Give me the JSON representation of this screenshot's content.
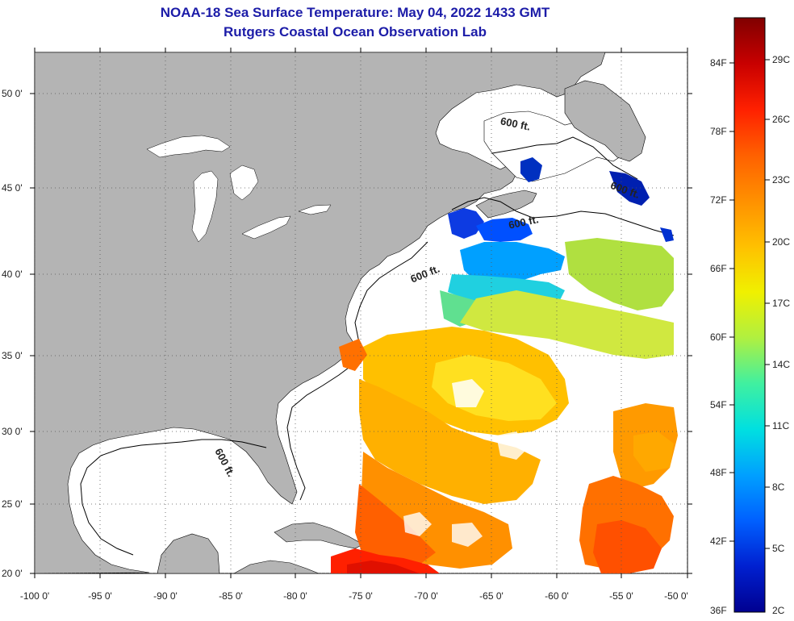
{
  "title": {
    "line1": "NOAA-18 Sea Surface Temperature:  May 04, 2022 1433 GMT",
    "line2": "Rutgers Coastal Ocean Observation Lab"
  },
  "axes": {
    "x_ticks": [
      "-100 0'",
      "-95 0'",
      "-90 0'",
      "-85 0'",
      "-80 0'",
      "-75 0'",
      "-70 0'",
      "-65 0'",
      "-60 0'",
      "-55 0'",
      "-50 0'"
    ],
    "y_ticks": [
      "50 0'",
      "45 0'",
      "40 0'",
      "35 0'",
      "30 0'",
      "25 0'",
      "20 0'"
    ]
  },
  "isobath_labels": [
    "600 ft.",
    "600 ft.",
    "600 ft.",
    "600 ft.",
    "600 ft."
  ],
  "colorbar": {
    "fahrenheit": [
      "84F",
      "78F",
      "72F",
      "66F",
      "60F",
      "54F",
      "48F",
      "42F",
      "36F"
    ],
    "celsius": [
      "29C",
      "26C",
      "23C",
      "20C",
      "17C",
      "14C",
      "11C",
      "8C",
      "5C",
      "2C"
    ],
    "colors": [
      "#800000",
      "#c80000",
      "#ff2000",
      "#ff6000",
      "#ff9000",
      "#ffc000",
      "#f0f000",
      "#b0f040",
      "#40f0a0",
      "#00e0e0",
      "#00a0ff",
      "#0060ff",
      "#0020d0",
      "#000090"
    ]
  },
  "colors": {
    "land": "#b4b4b4",
    "ocean": "#ffffff",
    "title": "#1c1ca8",
    "grid": "#555555"
  }
}
